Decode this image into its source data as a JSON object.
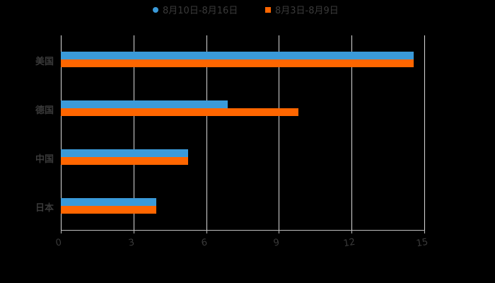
{
  "chart_data": {
    "type": "bar",
    "orientation": "horizontal",
    "title": "",
    "categories": [
      "美国",
      "德国",
      "中国",
      "日本"
    ],
    "series": [
      {
        "name": "8月10日-8月16日",
        "color": "#3a9ad9",
        "values": [
          14.55,
          6.9,
          5.25,
          3.95
        ]
      },
      {
        "name": "8月3日-8月9日",
        "color": "#ff6600",
        "values": [
          14.55,
          9.8,
          5.25,
          3.95
        ]
      }
    ],
    "xlabel": "",
    "ylabel": "",
    "xlim": [
      0,
      15
    ],
    "x_ticks": [
      "0",
      "3",
      "6",
      "9",
      "12",
      "15"
    ],
    "grid": true,
    "legend_position": "top"
  },
  "legend": {
    "item1": "8月10日-8月16日",
    "item2": "8月3日-8月9日"
  }
}
